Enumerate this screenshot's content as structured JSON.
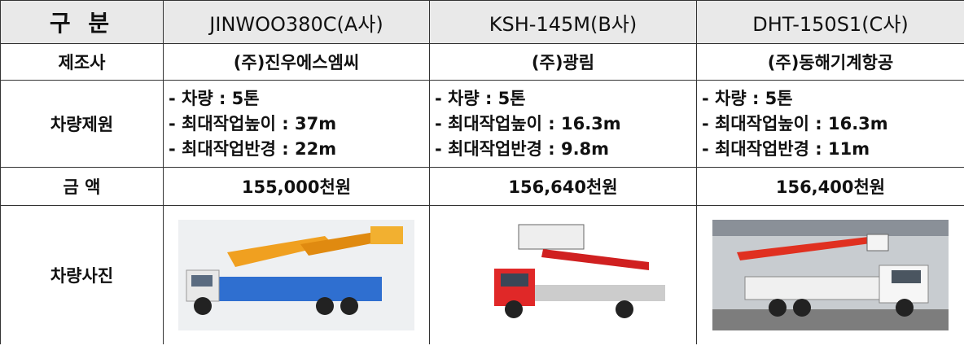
{
  "table": {
    "header": [
      "구 분",
      "JINWOO380C(A사)",
      "KSH-145M(B사)",
      "DHT-150S1(C사)"
    ],
    "rows": [
      {
        "label": "제조사",
        "cells": [
          "(주)진우에스엠씨",
          "(주)광림",
          "(주)동해기계항공"
        ]
      },
      {
        "label": "차량제원",
        "cells": [
          [
            "- 차량 : 5톤",
            "- 최대작업높이 : 37m",
            "- 최대작업반경 : 22m"
          ],
          [
            "- 차량 : 5톤",
            "- 최대작업높이 : 16.3m",
            "- 최대작업반경 : 9.8m"
          ],
          [
            "- 차량 : 5톤",
            "- 최대작업높이 : 16.3m",
            "- 최대작업반경 : 11m"
          ]
        ]
      },
      {
        "label": "금 액",
        "cells": [
          "155,000천원",
          "156,640천원",
          "156,400천원"
        ]
      },
      {
        "label": "차량사진"
      }
    ]
  }
}
